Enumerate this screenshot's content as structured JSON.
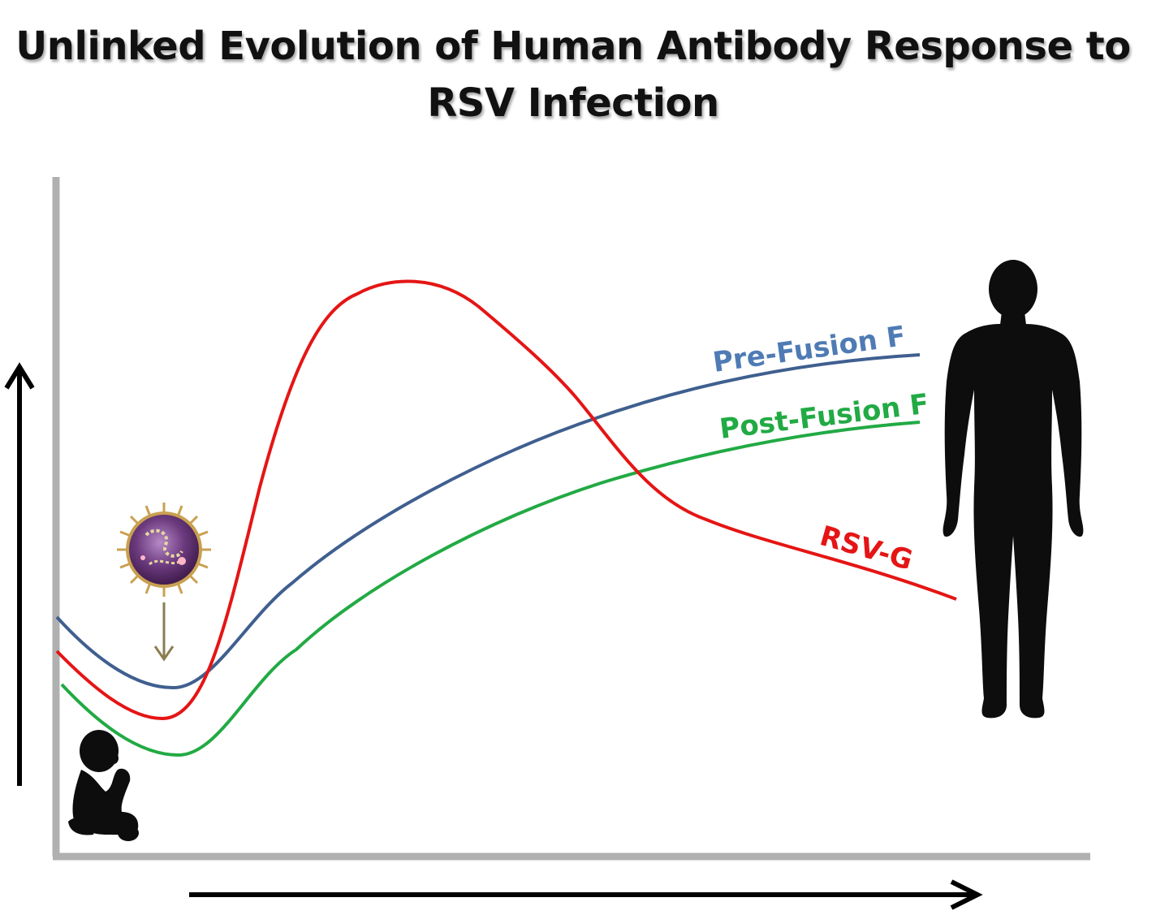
{
  "title": {
    "line1": "Unlinked Evolution of Human Antibody Response to",
    "line2": "RSV Infection"
  },
  "series": [
    {
      "key": "prefusion",
      "label": "Pre-Fusion F",
      "color": "#3f5f8f",
      "label_color": "#4f7bb5"
    },
    {
      "key": "postfusion",
      "label": "Post-Fusion F",
      "color": "#22aa44",
      "label_color": "#22aa44"
    },
    {
      "key": "rsvg",
      "label": "RSV-G",
      "color": "#e51515",
      "label_color": "#e51515"
    }
  ],
  "colors": {
    "axis": "#b0b0b0",
    "arrow": "#000000",
    "pointer": "#8b7d50",
    "silhouette": "#0d0d0d",
    "virus": "#5a2a6a"
  },
  "icons": [
    "baby-silhouette-icon",
    "adult-silhouette-icon",
    "rsv-virus-icon"
  ]
}
